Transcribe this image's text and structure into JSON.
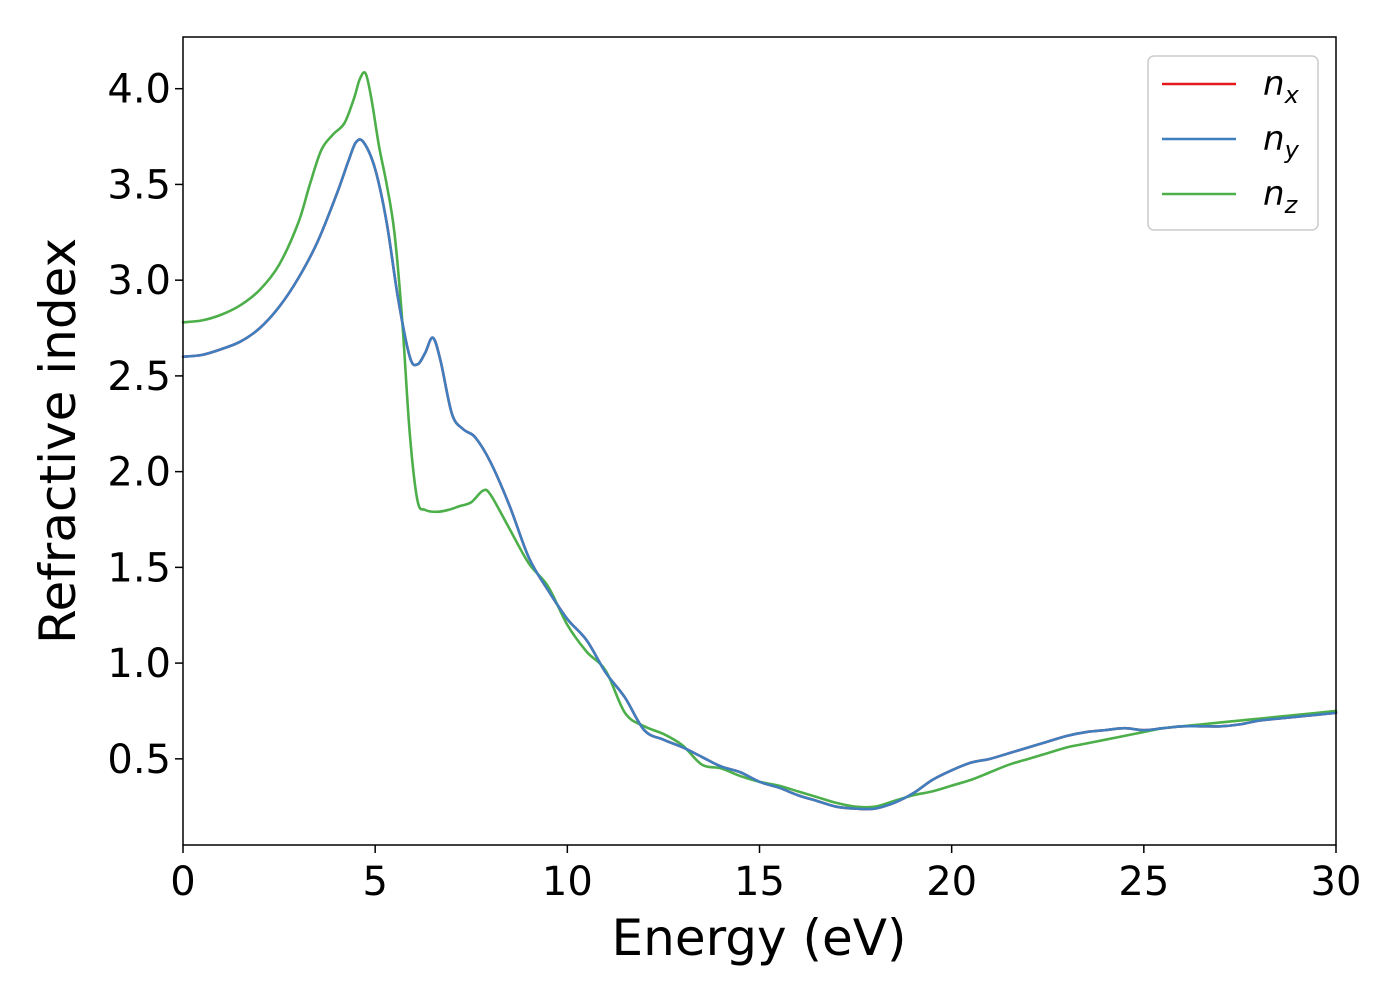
{
  "chart_data": {
    "type": "line",
    "title": "",
    "xlabel": "Energy (eV)",
    "ylabel": "Refractive index",
    "xlim": [
      0,
      30
    ],
    "ylim": [
      0.05,
      4.27
    ],
    "xticks": [
      0,
      5,
      10,
      15,
      20,
      25,
      30
    ],
    "yticks": [
      0.5,
      1.0,
      1.5,
      2.0,
      2.5,
      3.0,
      3.5,
      4.0
    ],
    "grid": false,
    "legend_position": "top-right",
    "series": [
      {
        "name": "n",
        "subscript": "x",
        "color": "#e41a1c",
        "x": [
          0,
          0.5,
          1,
          1.5,
          2,
          2.5,
          3,
          3.5,
          4,
          4.3,
          4.5,
          4.7,
          5.0,
          5.3,
          5.6,
          5.9,
          6.1,
          6.3,
          6.5,
          6.7,
          7.0,
          7.3,
          7.6,
          8.0,
          8.5,
          9.0,
          9.5,
          10.0,
          10.5,
          11.0,
          11.5,
          12.0,
          12.5,
          13.0,
          13.5,
          14.0,
          14.5,
          15.0,
          15.5,
          16.0,
          16.5,
          17.0,
          17.5,
          18.0,
          18.5,
          19.0,
          19.5,
          20.0,
          20.5,
          21.0,
          21.5,
          22.0,
          22.5,
          23.0,
          23.5,
          24.0,
          24.5,
          25.0,
          25.5,
          26.0,
          26.5,
          27.0,
          27.5,
          28.0,
          28.5,
          29.0,
          29.5,
          30.0
        ],
        "y": [
          2.6,
          2.61,
          2.64,
          2.68,
          2.75,
          2.86,
          3.01,
          3.2,
          3.45,
          3.62,
          3.72,
          3.72,
          3.58,
          3.3,
          2.9,
          2.6,
          2.56,
          2.62,
          2.7,
          2.58,
          2.3,
          2.22,
          2.18,
          2.05,
          1.82,
          1.55,
          1.38,
          1.23,
          1.12,
          0.95,
          0.82,
          0.65,
          0.6,
          0.56,
          0.51,
          0.46,
          0.43,
          0.38,
          0.35,
          0.31,
          0.28,
          0.25,
          0.24,
          0.24,
          0.27,
          0.32,
          0.39,
          0.44,
          0.48,
          0.5,
          0.53,
          0.56,
          0.59,
          0.62,
          0.64,
          0.65,
          0.66,
          0.65,
          0.66,
          0.67,
          0.67,
          0.67,
          0.68,
          0.7,
          0.71,
          0.72,
          0.73,
          0.74
        ]
      },
      {
        "name": "n",
        "subscript": "y",
        "color": "#3f7fbf",
        "x": [
          0,
          0.5,
          1,
          1.5,
          2,
          2.5,
          3,
          3.5,
          4,
          4.3,
          4.5,
          4.7,
          5.0,
          5.3,
          5.6,
          5.9,
          6.1,
          6.3,
          6.5,
          6.7,
          7.0,
          7.3,
          7.6,
          8.0,
          8.5,
          9.0,
          9.5,
          10.0,
          10.5,
          11.0,
          11.5,
          12.0,
          12.5,
          13.0,
          13.5,
          14.0,
          14.5,
          15.0,
          15.5,
          16.0,
          16.5,
          17.0,
          17.5,
          18.0,
          18.5,
          19.0,
          19.5,
          20.0,
          20.5,
          21.0,
          21.5,
          22.0,
          22.5,
          23.0,
          23.5,
          24.0,
          24.5,
          25.0,
          25.5,
          26.0,
          26.5,
          27.0,
          27.5,
          28.0,
          28.5,
          29.0,
          29.5,
          30.0
        ],
        "y": [
          2.6,
          2.61,
          2.64,
          2.68,
          2.75,
          2.86,
          3.01,
          3.2,
          3.45,
          3.62,
          3.72,
          3.72,
          3.58,
          3.3,
          2.9,
          2.6,
          2.56,
          2.62,
          2.7,
          2.58,
          2.3,
          2.22,
          2.18,
          2.05,
          1.82,
          1.55,
          1.38,
          1.23,
          1.12,
          0.95,
          0.82,
          0.65,
          0.6,
          0.56,
          0.51,
          0.46,
          0.43,
          0.38,
          0.35,
          0.31,
          0.28,
          0.25,
          0.24,
          0.24,
          0.27,
          0.32,
          0.39,
          0.44,
          0.48,
          0.5,
          0.53,
          0.56,
          0.59,
          0.62,
          0.64,
          0.65,
          0.66,
          0.65,
          0.66,
          0.67,
          0.67,
          0.67,
          0.68,
          0.7,
          0.71,
          0.72,
          0.73,
          0.74
        ]
      },
      {
        "name": "n",
        "subscript": "z",
        "color": "#4daf4a",
        "x": [
          0,
          0.5,
          1,
          1.5,
          2,
          2.5,
          3,
          3.3,
          3.6,
          3.9,
          4.2,
          4.45,
          4.6,
          4.75,
          4.9,
          5.1,
          5.3,
          5.5,
          5.7,
          5.9,
          6.1,
          6.3,
          6.6,
          6.9,
          7.2,
          7.5,
          7.8,
          8.0,
          8.5,
          9.0,
          9.5,
          10.0,
          10.5,
          11.0,
          11.5,
          12.0,
          12.5,
          13.0,
          13.5,
          14.0,
          14.5,
          15.0,
          15.5,
          16.0,
          16.5,
          17.0,
          17.5,
          18.0,
          18.5,
          19.0,
          19.5,
          20.0,
          20.5,
          21.0,
          21.5,
          22.0,
          22.5,
          23.0,
          23.5,
          24.0,
          24.5,
          25.0,
          25.5,
          26.0,
          26.5,
          27.0,
          27.5,
          28.0,
          28.5,
          29.0,
          29.5,
          30.0
        ],
        "y": [
          2.78,
          2.79,
          2.82,
          2.87,
          2.95,
          3.08,
          3.3,
          3.5,
          3.68,
          3.76,
          3.82,
          3.95,
          4.05,
          4.08,
          3.95,
          3.7,
          3.5,
          3.25,
          2.8,
          2.2,
          1.85,
          1.8,
          1.79,
          1.8,
          1.82,
          1.84,
          1.9,
          1.88,
          1.7,
          1.52,
          1.4,
          1.2,
          1.06,
          0.96,
          0.74,
          0.67,
          0.63,
          0.57,
          0.47,
          0.45,
          0.41,
          0.38,
          0.36,
          0.33,
          0.3,
          0.27,
          0.25,
          0.25,
          0.28,
          0.31,
          0.33,
          0.36,
          0.39,
          0.43,
          0.47,
          0.5,
          0.53,
          0.56,
          0.58,
          0.6,
          0.62,
          0.64,
          0.66,
          0.67,
          0.68,
          0.69,
          0.7,
          0.71,
          0.72,
          0.73,
          0.74,
          0.75
        ]
      }
    ]
  }
}
